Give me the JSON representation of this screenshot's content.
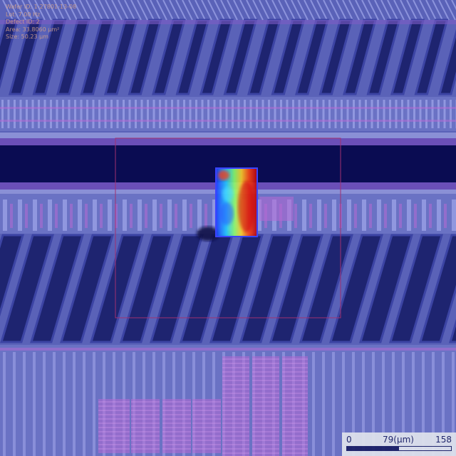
{
  "overlay": {
    "lines": [
      "Wafer ID: 1-27801-13-08",
      "Lot: 7.00 Hz",
      "Defect ID: 2",
      "Area: 33.8060 μm²",
      "Size: 50.23 μm"
    ]
  },
  "scale_bar": {
    "min_label": "0",
    "mid_label": "79(μm)",
    "max_label": "158",
    "fill_fraction": 0.5
  },
  "colors": {
    "background": "#5a62b8",
    "trench": "#0a0c52",
    "stripe": "#1e2470",
    "stripe_edge": "#3c44a4",
    "pink_line": "#b56ad4",
    "detection_box": "#3a44ff",
    "roi_box": "#a03070"
  }
}
